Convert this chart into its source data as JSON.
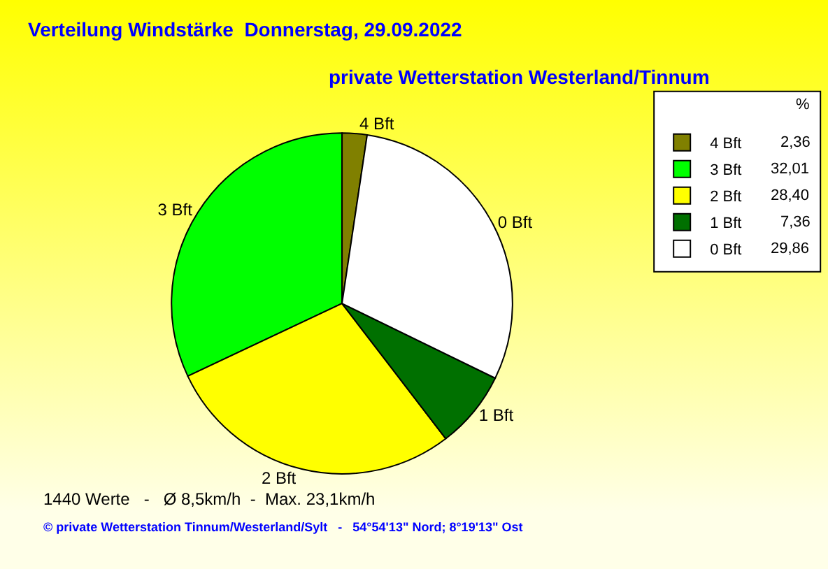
{
  "chart_data": {
    "type": "pie",
    "title": "Verteilung Windstärke  Donnerstag, 29.09.2022",
    "subtitle": "private Wetterstation Westerland/Tinnum",
    "categories": [
      "4 Bft",
      "3 Bft",
      "2 Bft",
      "1 Bft",
      "0 Bft"
    ],
    "values": [
      2.36,
      32.01,
      28.4,
      7.36,
      29.86
    ],
    "value_labels": [
      "2,36",
      "32,01",
      "28,40",
      "7,36",
      "29,86"
    ],
    "colors": [
      "#808000",
      "#00ff00",
      "#ffff00",
      "#007000",
      "#ffffff"
    ],
    "legend": "top right",
    "legend_title": "%",
    "annotations": [
      "1440 Werte   -   Ø 8,5km/h  -  Max. 23,1km/h",
      "© private Wetterstation Tinnum/Westerland/Sylt   -   54°54'13\" Nord; 8°19'13\" Ost"
    ]
  }
}
